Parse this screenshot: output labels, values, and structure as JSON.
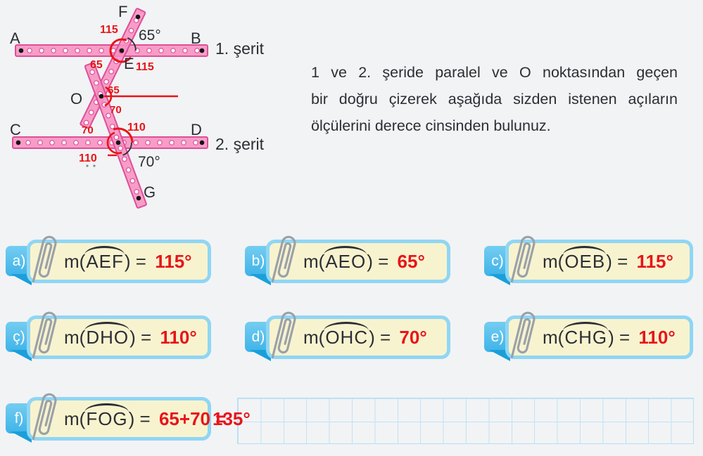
{
  "colors": {
    "red": "#e81419",
    "strip_pink": "#f791c0",
    "strip_border": "#dd4f98",
    "tab_blue": "#45b9ea",
    "box_border": "#8fd6f4",
    "box_fill": "#f8f3cf",
    "grid_line": "#bfe3f5"
  },
  "diagram": {
    "points": {
      "F": "F",
      "A": "A",
      "B": "B",
      "E": "E",
      "O": "O",
      "C": "C",
      "D": "D",
      "G": "G"
    },
    "strip1_label": "1. şerit",
    "strip2_label": "2. şerit",
    "angle_marks": {
      "e_top": "115",
      "e_black": "65°",
      "e_left": "65",
      "e_bottom_right": "115",
      "o_upper": "65",
      "o_lower": "70",
      "h_top_left": "70",
      "h_top_right": "110",
      "h_bottom_left": "110",
      "h_black": "70°"
    }
  },
  "instruction": {
    "lines": [
      "1 ve 2. şeride paralel ve O noktasından geçen",
      "bir doğru çizerek aşağıda sizden istenen açıların",
      "ölçülerini derece cinsinden bulunuz."
    ]
  },
  "expr": {
    "prefix": "m(",
    "suffix": ") = "
  },
  "answers": [
    {
      "label": "a)",
      "angle": "AEF",
      "value": "115°"
    },
    {
      "label": "b)",
      "angle": "AEO",
      "value": "65°"
    },
    {
      "label": "c)",
      "angle": "OEB",
      "value": "115°"
    },
    {
      "label": "ç)",
      "angle": "DHO",
      "value": "110°"
    },
    {
      "label": "d)",
      "angle": "OHC",
      "value": "70°"
    },
    {
      "label": "e)",
      "angle": "CHG",
      "value": "110°"
    },
    {
      "label": "f)",
      "angle": "FOG",
      "value": "65+70 =",
      "result": "135°"
    }
  ]
}
